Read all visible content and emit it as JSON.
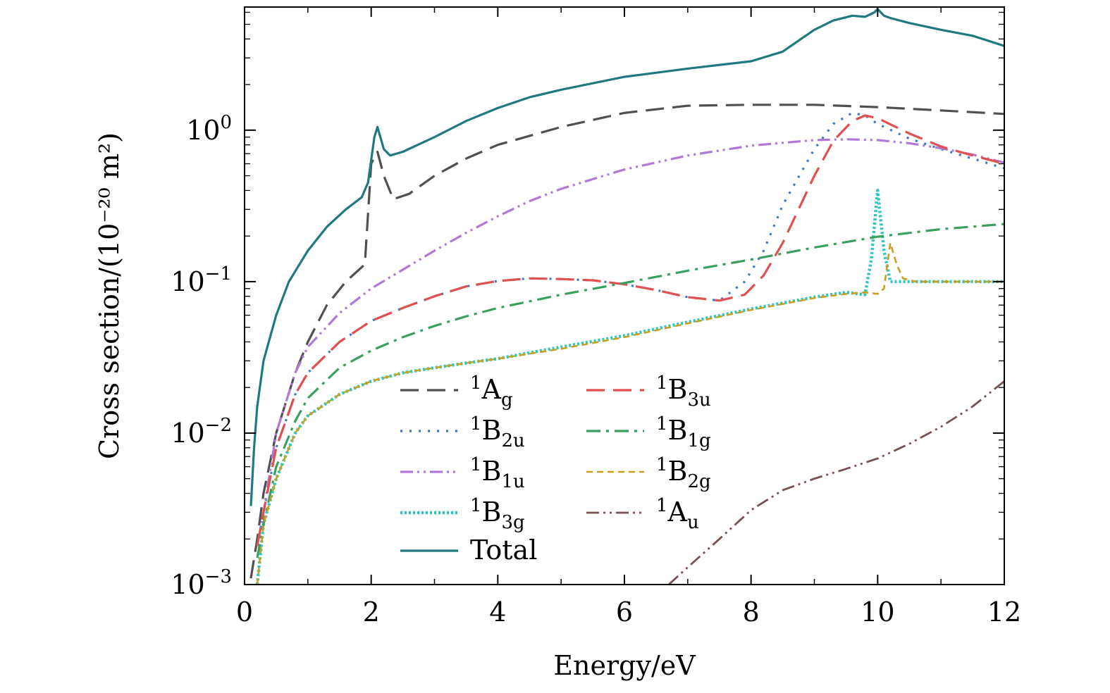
{
  "chart_data": {
    "type": "line",
    "xlabel": "Energy/eV",
    "ylabel": "Cross section/(10⁻²⁰ m²)",
    "xlim": [
      0,
      12
    ],
    "ylim": [
      0.001,
      6.5
    ],
    "yscale": "log",
    "x_ticks": [
      0,
      2,
      4,
      6,
      8,
      10,
      12
    ],
    "y_ticks": [
      {
        "value": 0.001,
        "base": "10",
        "exp": "−3"
      },
      {
        "value": 0.01,
        "base": "10",
        "exp": "−2"
      },
      {
        "value": 0.1,
        "base": "10",
        "exp": "−1"
      },
      {
        "value": 1,
        "base": "10",
        "exp": "0"
      }
    ],
    "legend_position": "lower-center",
    "series": [
      {
        "name": "1Ag",
        "sup": "1",
        "base": "A",
        "sub": "g",
        "color": "#505050",
        "dash": "26,12",
        "width": 3.2,
        "x": [
          0.1,
          0.2,
          0.3,
          0.5,
          0.8,
          1.0,
          1.3,
          1.6,
          1.9,
          2.0,
          2.1,
          2.2,
          2.35,
          2.6,
          3.0,
          3.5,
          4.0,
          5.0,
          6.0,
          7.0,
          8.0,
          9.0,
          10.0,
          11.0,
          12.0
        ],
        "y": [
          0.0011,
          0.002,
          0.004,
          0.01,
          0.025,
          0.04,
          0.07,
          0.1,
          0.13,
          0.6,
          0.72,
          0.5,
          0.35,
          0.38,
          0.5,
          0.65,
          0.8,
          1.05,
          1.3,
          1.45,
          1.47,
          1.47,
          1.42,
          1.35,
          1.28
        ]
      },
      {
        "name": "1B2u",
        "sup": "1",
        "base": "B",
        "sub": "2u",
        "color": "#3a78c8",
        "dash": "3,10",
        "width": 3.2,
        "x": [
          0.2,
          0.3,
          0.5,
          0.8,
          1.0,
          1.5,
          2.0,
          2.5,
          3.0,
          3.5,
          4.0,
          4.5,
          5.0,
          5.5,
          6.0,
          6.5,
          7.0,
          7.5,
          7.9,
          8.2,
          8.5,
          9.0,
          9.3,
          9.6,
          9.8,
          10.0,
          10.5,
          11.0,
          11.5,
          12.0
        ],
        "y": [
          0.0018,
          0.003,
          0.008,
          0.018,
          0.025,
          0.04,
          0.055,
          0.067,
          0.08,
          0.093,
          0.101,
          0.105,
          0.104,
          0.102,
          0.096,
          0.088,
          0.079,
          0.075,
          0.1,
          0.16,
          0.32,
          0.75,
          1.1,
          1.3,
          1.25,
          1.1,
          0.88,
          0.75,
          0.65,
          0.56
        ]
      },
      {
        "name": "1B1u",
        "sup": "1",
        "base": "B",
        "sub": "1u",
        "color": "#b079d6",
        "dash": "18,6,3,6,3,6",
        "width": 3.2,
        "x": [
          0.2,
          0.3,
          0.5,
          0.8,
          1.0,
          1.5,
          2.0,
          2.5,
          3.0,
          3.5,
          4.0,
          4.5,
          5.0,
          6.0,
          7.0,
          8.0,
          9.0,
          9.5,
          10.0,
          10.5,
          11.0,
          11.5,
          12.0
        ],
        "y": [
          0.0018,
          0.003,
          0.01,
          0.025,
          0.037,
          0.062,
          0.09,
          0.12,
          0.16,
          0.21,
          0.27,
          0.34,
          0.41,
          0.55,
          0.68,
          0.79,
          0.86,
          0.87,
          0.86,
          0.82,
          0.76,
          0.69,
          0.61
        ]
      },
      {
        "name": "1B3g",
        "sup": "1",
        "base": "B",
        "sub": "3g",
        "color": "#2ec7c0",
        "dash": "3,3",
        "width": 4.5,
        "x": [
          0.2,
          0.3,
          0.5,
          0.8,
          1.0,
          1.5,
          2.0,
          2.5,
          3.0,
          3.5,
          4.0,
          5.0,
          6.0,
          7.0,
          8.0,
          9.0,
          9.5,
          9.8,
          9.9,
          10.0,
          10.1,
          10.2,
          10.3,
          10.5,
          11.0,
          11.5,
          12.0
        ],
        "y": [
          0.001,
          0.0025,
          0.005,
          0.01,
          0.013,
          0.018,
          0.022,
          0.025,
          0.027,
          0.029,
          0.031,
          0.037,
          0.044,
          0.054,
          0.066,
          0.079,
          0.085,
          0.082,
          0.14,
          0.4,
          0.16,
          0.1,
          0.1,
          0.1,
          0.1,
          0.1,
          0.1
        ]
      },
      {
        "name": "1B3u",
        "sup": "1",
        "base": "B",
        "sub": "3u",
        "color": "#e05050",
        "dash": "26,12",
        "width": 3.2,
        "x": [
          0.2,
          0.3,
          0.5,
          0.8,
          1.0,
          1.5,
          2.0,
          2.5,
          3.0,
          3.5,
          4.0,
          4.5,
          5.0,
          5.5,
          6.0,
          6.5,
          7.0,
          7.5,
          7.9,
          8.2,
          8.5,
          9.0,
          9.3,
          9.6,
          9.8,
          10.0,
          10.5,
          11.0,
          11.5,
          12.0
        ],
        "y": [
          0.0018,
          0.003,
          0.008,
          0.018,
          0.025,
          0.04,
          0.055,
          0.067,
          0.08,
          0.093,
          0.101,
          0.105,
          0.104,
          0.102,
          0.096,
          0.088,
          0.079,
          0.075,
          0.082,
          0.11,
          0.18,
          0.5,
          0.85,
          1.15,
          1.25,
          1.2,
          0.95,
          0.78,
          0.68,
          0.6
        ]
      },
      {
        "name": "1B1g",
        "sup": "1",
        "base": "B",
        "sub": "1g",
        "color": "#3aa060",
        "dash": "20,8,4,8",
        "width": 3.2,
        "x": [
          0.2,
          0.3,
          0.5,
          0.8,
          1.0,
          1.5,
          2.0,
          2.5,
          3.0,
          3.5,
          4.0,
          5.0,
          6.0,
          7.0,
          8.0,
          9.0,
          10.0,
          11.0,
          12.0
        ],
        "y": [
          0.0015,
          0.0025,
          0.006,
          0.012,
          0.017,
          0.027,
          0.035,
          0.043,
          0.051,
          0.059,
          0.067,
          0.082,
          0.098,
          0.118,
          0.14,
          0.168,
          0.198,
          0.222,
          0.24
        ]
      },
      {
        "name": "1B2g",
        "sup": "1",
        "base": "B",
        "sub": "2g",
        "color": "#c8a020",
        "dash": "9,6",
        "width": 2.6,
        "x": [
          0.2,
          0.3,
          0.5,
          0.8,
          1.0,
          1.5,
          2.0,
          2.5,
          3.0,
          3.5,
          4.0,
          5.0,
          6.0,
          7.0,
          8.0,
          9.0,
          9.5,
          9.8,
          10.0,
          10.1,
          10.2,
          10.3,
          10.4,
          10.6,
          11.0,
          11.5,
          12.0
        ],
        "y": [
          0.001,
          0.0025,
          0.005,
          0.01,
          0.013,
          0.018,
          0.022,
          0.025,
          0.027,
          0.029,
          0.031,
          0.036,
          0.043,
          0.053,
          0.065,
          0.078,
          0.083,
          0.085,
          0.083,
          0.09,
          0.18,
          0.13,
          0.105,
          0.1,
          0.1,
          0.1,
          0.1
        ]
      },
      {
        "name": "1Au",
        "sup": "1",
        "base": "A",
        "sub": "u",
        "color": "#7a5050",
        "dash": "18,6,3,6,3,6",
        "width": 2.8,
        "x": [
          6.7,
          7.0,
          7.5,
          8.0,
          8.5,
          9.0,
          9.5,
          10.0,
          10.5,
          11.0,
          11.5,
          12.0
        ],
        "y": [
          0.001,
          0.0013,
          0.002,
          0.0031,
          0.0042,
          0.005,
          0.0058,
          0.0068,
          0.0085,
          0.011,
          0.015,
          0.022
        ]
      },
      {
        "name": "Total",
        "sup": "",
        "base": "Total",
        "sub": "",
        "color": "#1f7a80",
        "dash": "",
        "width": 3.2,
        "x": [
          0.1,
          0.15,
          0.2,
          0.3,
          0.5,
          0.7,
          1.0,
          1.3,
          1.6,
          1.85,
          1.95,
          2.05,
          2.1,
          2.2,
          2.3,
          2.5,
          3.0,
          3.5,
          4.0,
          4.5,
          5.0,
          6.0,
          7.0,
          8.0,
          8.5,
          9.0,
          9.3,
          9.6,
          9.8,
          9.95,
          10.0,
          10.1,
          10.2,
          10.5,
          11.0,
          11.5,
          12.0
        ],
        "y": [
          0.0033,
          0.008,
          0.015,
          0.03,
          0.06,
          0.1,
          0.16,
          0.23,
          0.3,
          0.36,
          0.45,
          0.9,
          1.05,
          0.75,
          0.68,
          0.72,
          0.9,
          1.15,
          1.4,
          1.65,
          1.85,
          2.25,
          2.55,
          2.85,
          3.3,
          4.6,
          5.3,
          5.7,
          5.6,
          6.0,
          6.3,
          5.7,
          5.5,
          5.1,
          4.6,
          4.2,
          3.6
        ]
      }
    ]
  }
}
